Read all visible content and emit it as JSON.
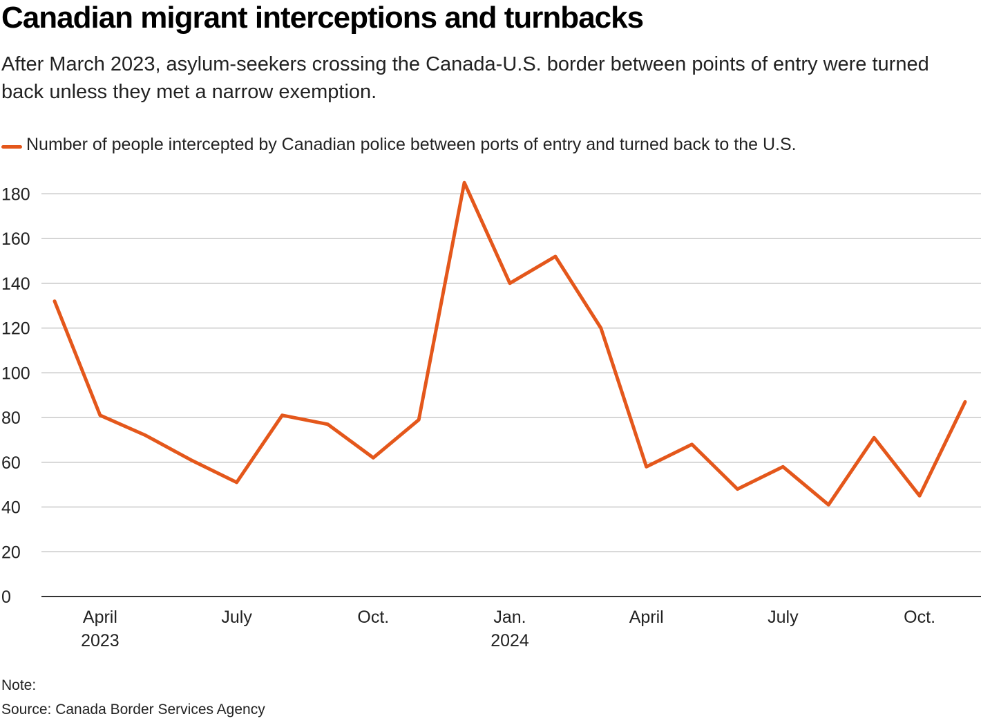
{
  "header": {
    "title": "Canadian migrant interceptions and turnbacks",
    "subtitle": "After March 2023, asylum-seekers crossing the Canada-U.S. border between points of entry were turned back unless they met a narrow exemption."
  },
  "colors": {
    "series": "#e4571b",
    "grid": "#c8c8c8",
    "axis": "#333333"
  },
  "chart_data": {
    "type": "line",
    "title": "Canadian migrant interceptions and turnbacks",
    "series": [
      {
        "name": "Number of people intercepted by Canadian police between ports of entry and turned back to the U.S.",
        "x": [
          "2023-03",
          "2023-04",
          "2023-05",
          "2023-06",
          "2023-07",
          "2023-08",
          "2023-09",
          "2023-10",
          "2023-11",
          "2023-12",
          "2024-01",
          "2024-02",
          "2024-03",
          "2024-04",
          "2024-05",
          "2024-06",
          "2024-07",
          "2024-08",
          "2024-09",
          "2024-10",
          "2024-11"
        ],
        "values": [
          132,
          81,
          72,
          61,
          51,
          81,
          77,
          62,
          79,
          185,
          140,
          152,
          120,
          58,
          68,
          48,
          58,
          41,
          71,
          45,
          87
        ]
      }
    ],
    "ylim": [
      0,
      190
    ],
    "yticks": [
      0,
      20,
      40,
      60,
      80,
      100,
      120,
      140,
      160,
      180
    ],
    "xticks": [
      {
        "x": "2023-04",
        "label": "April",
        "sublabel": "2023"
      },
      {
        "x": "2023-07",
        "label": "July",
        "sublabel": ""
      },
      {
        "x": "2023-10",
        "label": "Oct.",
        "sublabel": ""
      },
      {
        "x": "2024-01",
        "label": "Jan.",
        "sublabel": "2024"
      },
      {
        "x": "2024-04",
        "label": "April",
        "sublabel": ""
      },
      {
        "x": "2024-07",
        "label": "July",
        "sublabel": ""
      },
      {
        "x": "2024-10",
        "label": "Oct.",
        "sublabel": ""
      }
    ],
    "grid": true,
    "legend_position": "top-left"
  },
  "footer": {
    "note": "Note:",
    "source": "Source: Canada Border Services Agency"
  }
}
